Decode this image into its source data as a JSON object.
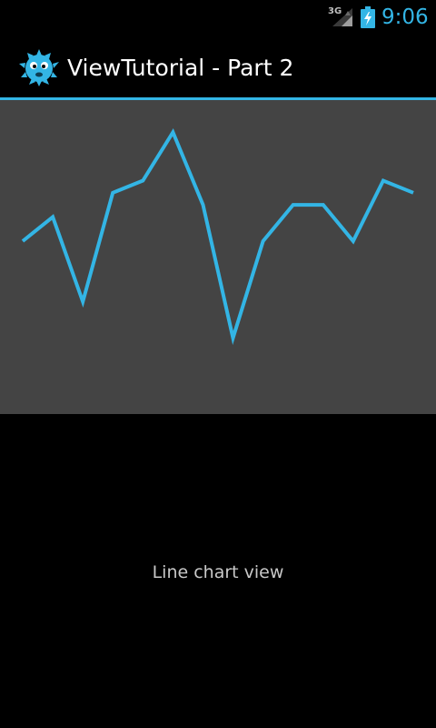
{
  "status_bar": {
    "network_label": "3G",
    "time": "9:06",
    "signal_icon": "cell-signal-icon",
    "battery_icon": "battery-charging-icon"
  },
  "action_bar": {
    "title": "ViewTutorial - Part 2",
    "app_icon": "pufferfish-app-icon"
  },
  "colors": {
    "accent": "#33b5e5",
    "chart_background": "#444444",
    "background": "#000000",
    "caption_text": "#c8c8c8"
  },
  "chart_data": {
    "type": "line",
    "title": "",
    "xlabel": "",
    "ylabel": "",
    "grid": false,
    "legend": "none",
    "axes_visible": false,
    "x": [
      0,
      1,
      2,
      3,
      4,
      5,
      6,
      7,
      8,
      9,
      10,
      11,
      12,
      13
    ],
    "ylim": [
      0,
      20
    ],
    "series": [
      {
        "values": [
          10,
          12,
          5,
          14,
          15,
          19,
          13,
          2,
          10,
          13,
          13,
          10,
          15,
          14
        ]
      }
    ]
  },
  "main": {
    "caption": "Line chart view"
  }
}
